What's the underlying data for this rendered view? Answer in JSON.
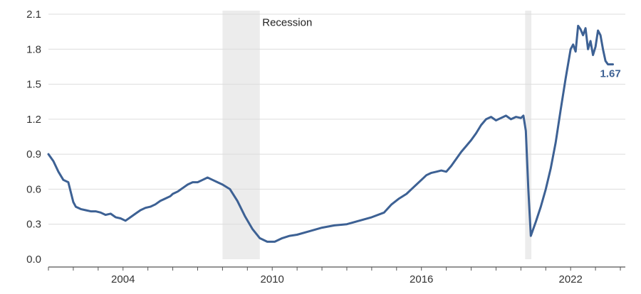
{
  "chart_data": {
    "type": "line",
    "title": "",
    "xlabel": "",
    "ylabel": "",
    "ylim": [
      0.0,
      2.1
    ],
    "y_ticks": [
      "0.0",
      "0.3",
      "0.6",
      "0.9",
      "1.2",
      "1.5",
      "1.8",
      "2.1"
    ],
    "x_range": [
      2001.0,
      2024.2
    ],
    "x_ticks": [
      2004,
      2010,
      2016,
      2022
    ],
    "grid": "horizontal",
    "legend": "none",
    "line_color": "#3d6194",
    "recession_color": "#ececec",
    "recessions": [
      {
        "start": 2008.0,
        "end": 2009.5
      },
      {
        "start": 2020.17,
        "end": 2020.42
      }
    ],
    "annotations": [
      {
        "text": "Recession",
        "x": 2009.6,
        "y": 2.03
      }
    ],
    "last_value_label": "1.67",
    "series": [
      {
        "name": "",
        "x": [
          2001.0,
          2001.2,
          2001.4,
          2001.6,
          2001.8,
          2002.0,
          2002.1,
          2002.3,
          2002.5,
          2002.7,
          2002.9,
          2003.1,
          2003.3,
          2003.5,
          2003.7,
          2003.9,
          2004.1,
          2004.3,
          2004.5,
          2004.7,
          2004.9,
          2005.1,
          2005.3,
          2005.5,
          2005.7,
          2005.9,
          2006.0,
          2006.2,
          2006.4,
          2006.6,
          2006.8,
          2007.0,
          2007.2,
          2007.4,
          2007.6,
          2007.8,
          2008.0,
          2008.3,
          2008.6,
          2008.9,
          2009.2,
          2009.5,
          2009.8,
          2010.1,
          2010.4,
          2010.7,
          2011.0,
          2011.5,
          2012.0,
          2012.5,
          2013.0,
          2013.5,
          2014.0,
          2014.5,
          2014.8,
          2015.1,
          2015.4,
          2015.6,
          2015.8,
          2016.0,
          2016.2,
          2016.4,
          2016.6,
          2016.8,
          2017.0,
          2017.2,
          2017.4,
          2017.6,
          2017.8,
          2018.0,
          2018.2,
          2018.4,
          2018.6,
          2018.8,
          2019.0,
          2019.2,
          2019.4,
          2019.6,
          2019.8,
          2020.0,
          2020.1,
          2020.2,
          2020.3,
          2020.4,
          2020.6,
          2020.8,
          2021.0,
          2021.2,
          2021.4,
          2021.6,
          2021.8,
          2022.0,
          2022.1,
          2022.2,
          2022.3,
          2022.4,
          2022.5,
          2022.6,
          2022.7,
          2022.8,
          2022.9,
          2023.0,
          2023.1,
          2023.2,
          2023.3,
          2023.4,
          2023.5,
          2023.6,
          2023.7
        ],
        "values": [
          0.9,
          0.84,
          0.75,
          0.68,
          0.66,
          0.49,
          0.45,
          0.43,
          0.42,
          0.41,
          0.41,
          0.4,
          0.38,
          0.39,
          0.36,
          0.35,
          0.33,
          0.36,
          0.39,
          0.42,
          0.44,
          0.45,
          0.47,
          0.5,
          0.52,
          0.54,
          0.56,
          0.58,
          0.61,
          0.64,
          0.66,
          0.66,
          0.68,
          0.7,
          0.68,
          0.66,
          0.64,
          0.6,
          0.5,
          0.37,
          0.26,
          0.18,
          0.15,
          0.15,
          0.18,
          0.2,
          0.21,
          0.24,
          0.27,
          0.29,
          0.3,
          0.33,
          0.36,
          0.4,
          0.47,
          0.52,
          0.56,
          0.6,
          0.64,
          0.68,
          0.72,
          0.74,
          0.75,
          0.76,
          0.75,
          0.8,
          0.86,
          0.92,
          0.97,
          1.02,
          1.08,
          1.15,
          1.2,
          1.22,
          1.19,
          1.21,
          1.23,
          1.2,
          1.22,
          1.21,
          1.23,
          1.1,
          0.6,
          0.2,
          0.32,
          0.45,
          0.6,
          0.78,
          1.0,
          1.28,
          1.55,
          1.8,
          1.84,
          1.78,
          2.0,
          1.97,
          1.92,
          1.98,
          1.8,
          1.87,
          1.75,
          1.82,
          1.96,
          1.92,
          1.8,
          1.7,
          1.67,
          1.67,
          1.67
        ]
      }
    ]
  }
}
